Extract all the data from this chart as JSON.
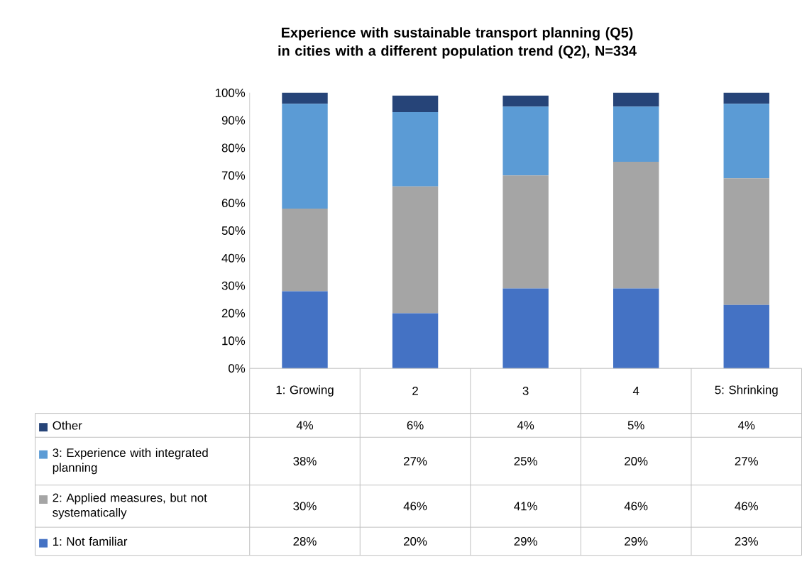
{
  "chart_data": {
    "type": "bar",
    "stacked": true,
    "title": "Experience with sustainable transport planning (Q5) in cities with a different population trend (Q2), N=334",
    "categories": [
      "1: Growing",
      "2",
      "3",
      "4",
      "5: Shrinking"
    ],
    "series": [
      {
        "name": "1: Not familiar",
        "color": "#4472c4",
        "values": [
          28,
          20,
          29,
          29,
          23
        ],
        "value_labels": [
          "28%",
          "20%",
          "29%",
          "29%",
          "23%"
        ]
      },
      {
        "name": "2: Applied measures, but not systematically",
        "color": "#a5a5a5",
        "values": [
          30,
          46,
          41,
          46,
          46
        ],
        "value_labels": [
          "30%",
          "46%",
          "41%",
          "46%",
          "46%"
        ]
      },
      {
        "name": "3: Experience with integrated planning",
        "color": "#5b9bd5",
        "values": [
          38,
          27,
          25,
          20,
          27
        ],
        "value_labels": [
          "38%",
          "27%",
          "25%",
          "20%",
          "27%"
        ]
      },
      {
        "name": "Other",
        "color": "#264478",
        "values": [
          4,
          6,
          4,
          5,
          4
        ],
        "value_labels": [
          "4%",
          "6%",
          "4%",
          "5%",
          "4%"
        ]
      }
    ],
    "ylim": [
      0,
      100
    ],
    "yticks": [
      {
        "value": 0,
        "label": "0%"
      },
      {
        "value": 10,
        "label": "10%"
      },
      {
        "value": 20,
        "label": "20%"
      },
      {
        "value": 30,
        "label": "30%"
      },
      {
        "value": 40,
        "label": "40%"
      },
      {
        "value": 50,
        "label": "50%"
      },
      {
        "value": 60,
        "label": "60%"
      },
      {
        "value": 70,
        "label": "70%"
      },
      {
        "value": 80,
        "label": "80%"
      },
      {
        "value": 90,
        "label": "90%"
      },
      {
        "value": 100,
        "label": "100%"
      }
    ],
    "grid": false,
    "legend": "bottom"
  }
}
